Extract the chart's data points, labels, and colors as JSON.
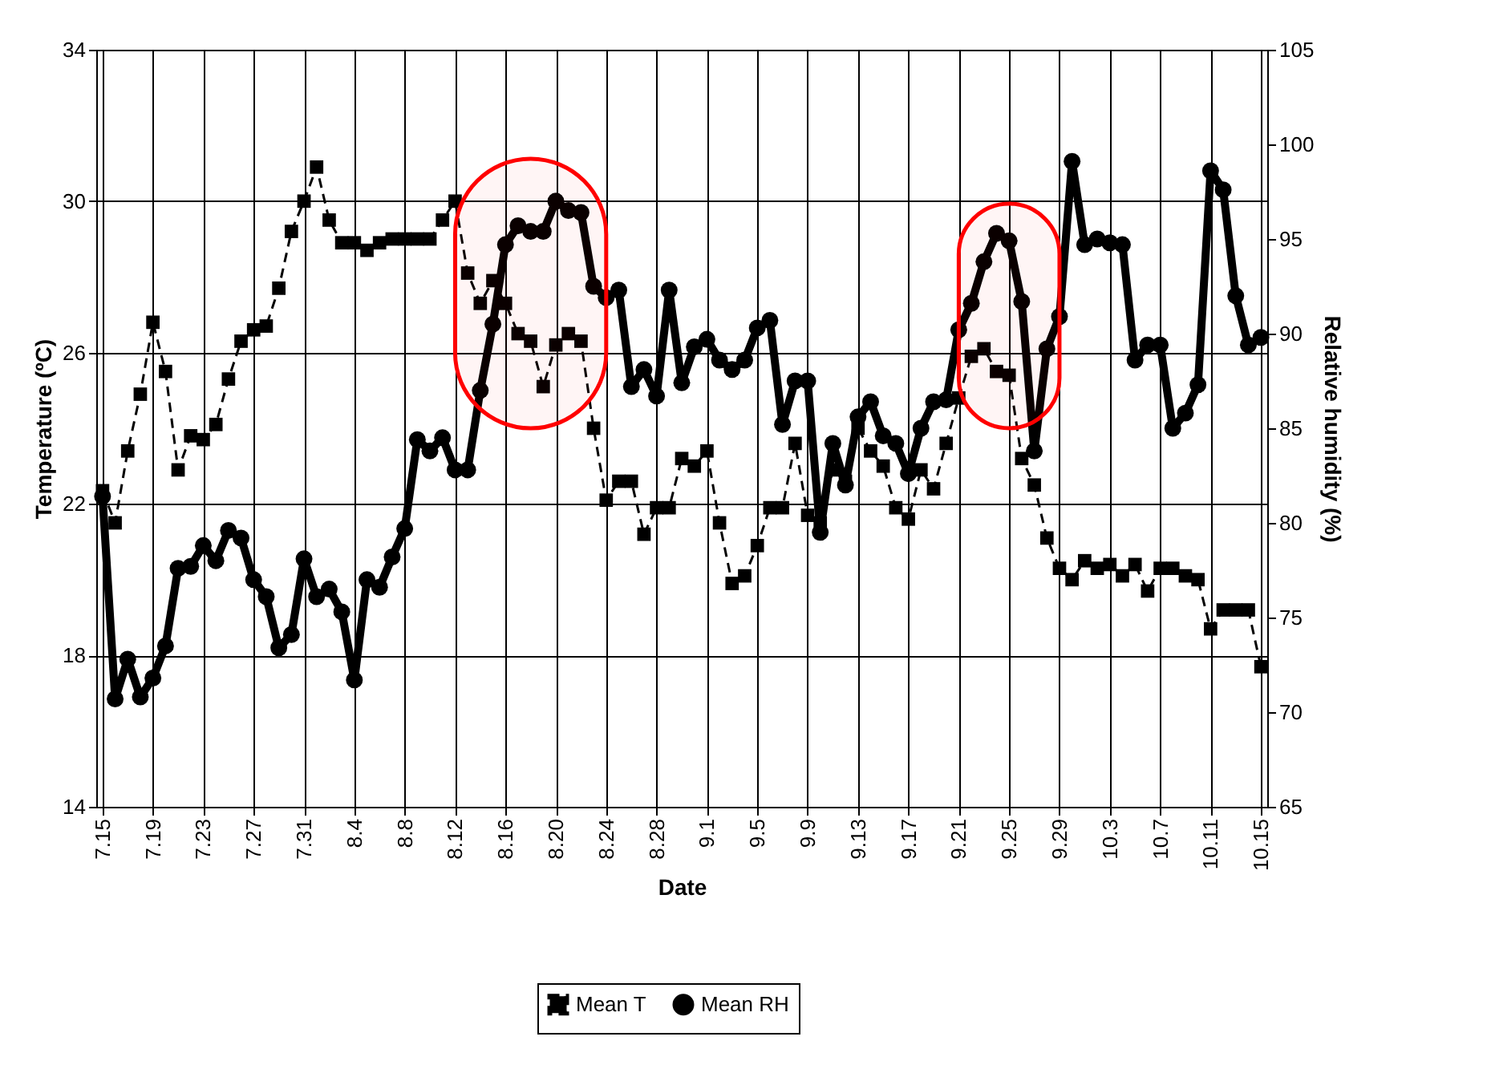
{
  "chart_data": {
    "type": "line",
    "xlabel": "Date",
    "ylabel": "Temperature (ºC)",
    "y2label": "Relative humidity (%)",
    "categories": [
      "7.15",
      null,
      null,
      null,
      "7.19",
      null,
      null,
      null,
      "7.23",
      null,
      null,
      null,
      "7.27",
      null,
      null,
      null,
      "7.31",
      null,
      null,
      null,
      "8.4",
      null,
      null,
      null,
      "8.8",
      null,
      null,
      null,
      "8.12",
      null,
      null,
      null,
      "8.16",
      null,
      null,
      null,
      "8.20",
      null,
      null,
      null,
      "8.24",
      null,
      null,
      null,
      "8.28",
      null,
      null,
      null,
      "9.1",
      null,
      null,
      null,
      "9.5",
      null,
      null,
      null,
      "9.9",
      null,
      null,
      null,
      "9.13",
      null,
      null,
      null,
      "9.17",
      null,
      null,
      null,
      "9.21",
      null,
      null,
      null,
      "9.25",
      null,
      null,
      null,
      "9.29",
      null,
      null,
      null,
      "10.3",
      null,
      null,
      null,
      "10.7",
      null,
      null,
      null,
      "10.11",
      null,
      null,
      null,
      "10.15"
    ],
    "series": [
      {
        "name": "Mean T",
        "color": "#000000",
        "line_style": "dashed",
        "marker": "square",
        "axis": "y",
        "values": [
          22.35,
          21.5,
          23.4,
          24.9,
          26.8,
          25.5,
          22.9,
          23.8,
          23.7,
          24.1,
          25.3,
          26.3,
          26.6,
          26.7,
          27.7,
          29.2,
          30.0,
          30.9,
          29.5,
          28.9,
          28.9,
          28.7,
          28.9,
          29.0,
          29.0,
          29.0,
          29.0,
          29.5,
          30.0,
          28.1,
          27.3,
          27.9,
          27.3,
          26.5,
          26.3,
          25.1,
          26.2,
          26.5,
          26.3,
          24.0,
          22.1,
          22.6,
          22.6,
          21.2,
          21.9,
          21.9,
          23.2,
          23.0,
          23.4,
          21.5,
          19.9,
          20.1,
          20.9,
          21.9,
          21.9,
          23.6,
          21.7,
          21.5,
          22.9,
          22.6,
          24.0,
          23.4,
          23.0,
          21.9,
          21.6,
          22.9,
          22.4,
          23.6,
          24.8,
          25.9,
          26.1,
          25.5,
          25.4,
          23.2,
          22.5,
          21.1,
          20.3,
          20.0,
          20.5,
          20.3,
          20.4,
          20.1,
          20.4,
          19.7,
          20.3,
          20.3,
          20.1,
          20.0,
          18.7,
          19.2,
          19.2,
          19.2,
          17.7
        ]
      },
      {
        "name": "Mean RH",
        "color": "#000000",
        "line_style": "solid",
        "marker": "circle",
        "axis": "y2",
        "values": [
          81.4,
          70.7,
          72.8,
          70.8,
          71.8,
          73.5,
          77.6,
          77.7,
          78.8,
          78.0,
          79.6,
          79.2,
          77.0,
          76.1,
          73.4,
          74.1,
          78.1,
          76.1,
          76.5,
          75.3,
          71.7,
          77.0,
          76.6,
          78.2,
          79.7,
          84.4,
          83.8,
          84.5,
          82.8,
          82.8,
          87.0,
          90.5,
          94.7,
          95.7,
          95.4,
          95.4,
          97.0,
          96.5,
          96.4,
          92.5,
          91.9,
          92.3,
          87.2,
          88.1,
          86.7,
          92.3,
          87.4,
          89.3,
          89.7,
          88.6,
          88.1,
          88.6,
          90.3,
          90.7,
          85.2,
          87.5,
          87.5,
          79.5,
          84.2,
          82.0,
          85.6,
          86.4,
          84.6,
          84.2,
          82.6,
          85.0,
          86.4,
          86.5,
          90.2,
          91.6,
          93.8,
          95.3,
          94.9,
          91.7,
          83.8,
          89.2,
          90.9,
          99.1,
          94.7,
          95.0,
          94.8,
          94.7,
          88.6,
          89.4,
          89.4,
          85.0,
          85.8,
          87.3,
          98.6,
          97.6,
          92.0,
          89.4,
          89.8
        ]
      }
    ],
    "ylim": [
      14,
      34
    ],
    "yticks": [
      14,
      18,
      22,
      26,
      30,
      34
    ],
    "y2lim": [
      65,
      105
    ],
    "y2ticks": [
      65,
      70,
      75,
      80,
      85,
      90,
      95,
      100,
      105
    ],
    "bands": [
      {
        "axis": "x",
        "from": "8.12",
        "to": "8.24",
        "color": "#ff0000"
      },
      {
        "axis": "x",
        "from": "9.21",
        "to": "9.29",
        "color": "#ff0000"
      }
    ],
    "grid": true,
    "legend": "bottom"
  }
}
